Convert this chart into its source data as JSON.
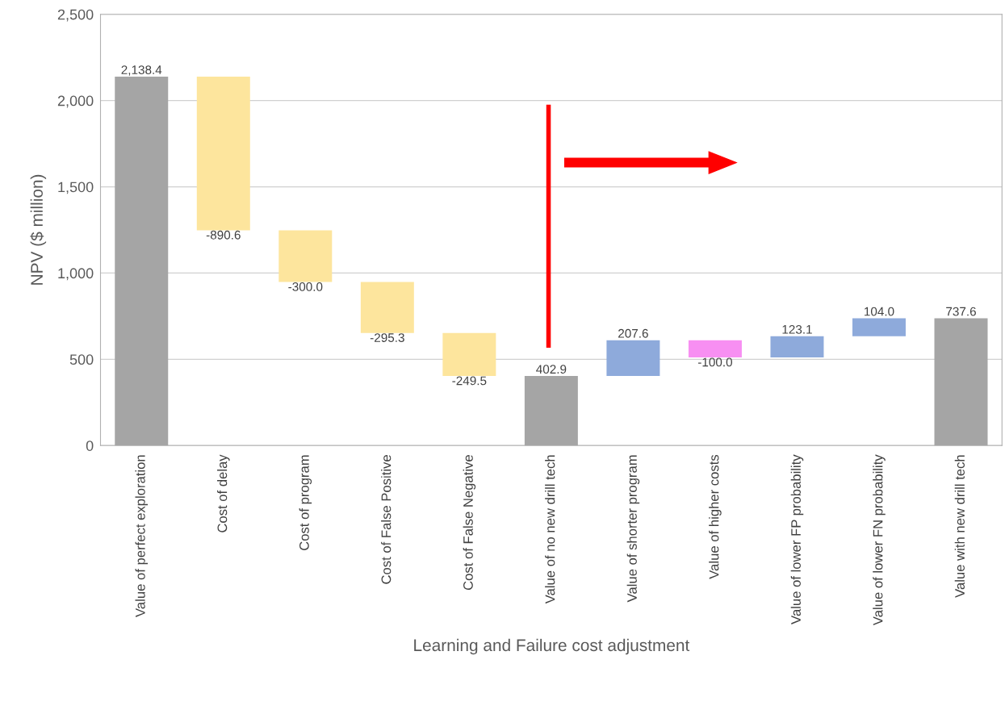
{
  "chart_data": {
    "type": "bar",
    "xlabel": "Learning and Failure cost adjustment",
    "ylabel": "NPV ($ million)",
    "categories": [
      "Value of perfect exploration",
      "Cost of delay",
      "Cost of program",
      "Cost of False Positive",
      "Cost of False Negative",
      "Value of no new drill tech",
      "Value of shorter program",
      "Value of higher costs",
      "Value of lower FP probability",
      "Value of lower FN probability",
      "Value with new drill tech"
    ],
    "values": [
      2138.4,
      -890.6,
      -300.0,
      -295.3,
      -249.5,
      402.9,
      207.6,
      -100.0,
      123.1,
      104.0,
      737.6
    ],
    "base": [
      0,
      2138.4,
      1247.8,
      947.8,
      652.5,
      0,
      402.9,
      610.5,
      510.5,
      633.6,
      0
    ],
    "colors": [
      "#a5a5a5",
      "#fde59d",
      "#fde59d",
      "#fde59d",
      "#fde59d",
      "#a5a5a5",
      "#8eaadb",
      "#f78ff2",
      "#8eaadb",
      "#8eaadb",
      "#a5a5a5"
    ],
    "value_labels": [
      "2,138.4",
      "-890.6",
      "-300.0",
      "-295.3",
      "-249.5",
      "402.9",
      "207.6",
      "-100.0",
      "123.1",
      "104.0",
      "737.6"
    ],
    "ylim": [
      0,
      2500
    ],
    "yticks": [
      0,
      {
        "value": 500,
        "label": "500"
      },
      {
        "value": 1000,
        "label": "1,000"
      },
      {
        "value": 1500,
        "label": "1,500"
      },
      {
        "value": 2000,
        "label": "2,000"
      },
      {
        "value": 2500,
        "label": "2,500"
      }
    ],
    "grid": "y"
  }
}
